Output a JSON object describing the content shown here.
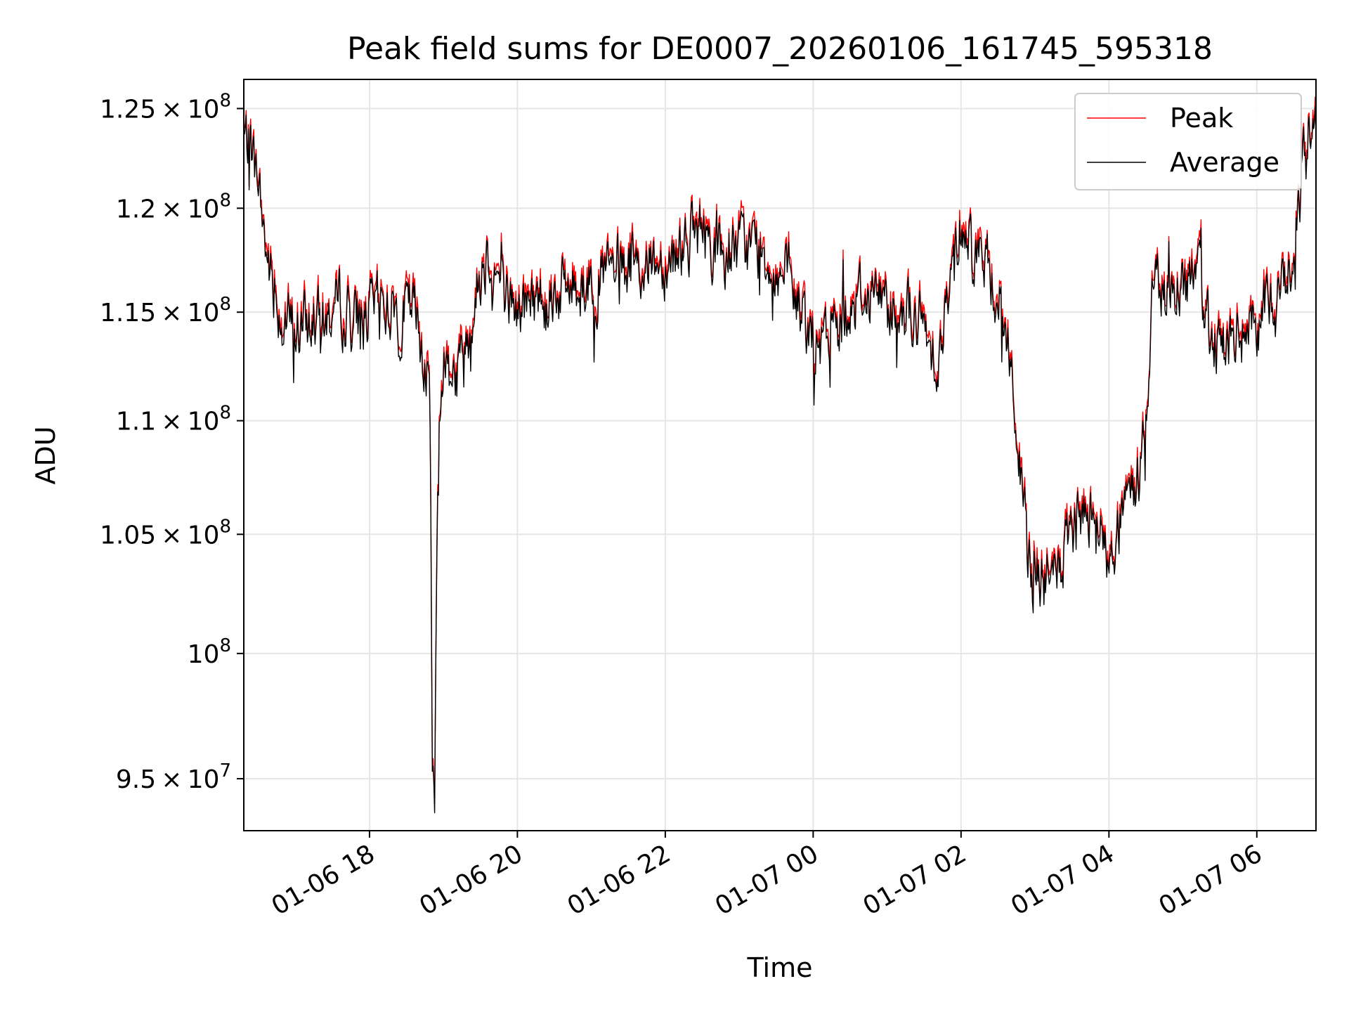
{
  "chart_data": {
    "type": "line",
    "title": "Peak field sums for DE0007_20260106_161745_595318",
    "xlabel": "Time",
    "ylabel": "ADU",
    "yscale": "log",
    "grid": true,
    "legend_position": "top-right",
    "xlim_hours": [
      16.3,
      30.8
    ],
    "ylim": [
      93000000,
      126500000
    ],
    "x_unit": "hours since 2026-01-06 00:00",
    "xticks": [
      {
        "value": 18,
        "label": "01-06 18"
      },
      {
        "value": 20,
        "label": "01-06 20"
      },
      {
        "value": 22,
        "label": "01-06 22"
      },
      {
        "value": 24,
        "label": "01-07 00"
      },
      {
        "value": 26,
        "label": "01-07 02"
      },
      {
        "value": 28,
        "label": "01-07 04"
      },
      {
        "value": 30,
        "label": "01-07 06"
      }
    ],
    "yticks": [
      {
        "value": 95000000,
        "mantissa": "9.5",
        "exp": "7"
      },
      {
        "value": 100000000,
        "mantissa": "",
        "exp": "8"
      },
      {
        "value": 105000000,
        "mantissa": "1.05",
        "exp": "8"
      },
      {
        "value": 110000000,
        "mantissa": "1.1",
        "exp": "8"
      },
      {
        "value": 115000000,
        "mantissa": "1.15",
        "exp": "8"
      },
      {
        "value": 120000000,
        "mantissa": "1.2",
        "exp": "8"
      },
      {
        "value": 125000000,
        "mantissa": "1.25",
        "exp": "8"
      }
    ],
    "series": [
      {
        "name": "Peak",
        "color": "#ff0000",
        "offset_fraction": 0.003
      },
      {
        "name": "Average",
        "color": "#000000",
        "offset_fraction": 0.0
      }
    ],
    "average_envelope": {
      "x": [
        16.3,
        16.4,
        16.5,
        16.6,
        16.7,
        16.8,
        16.9,
        17.0,
        17.2,
        17.4,
        17.6,
        17.8,
        18.0,
        18.2,
        18.4,
        18.6,
        18.75,
        18.82,
        18.85,
        18.88,
        18.92,
        19.0,
        19.2,
        19.4,
        19.5,
        19.6,
        19.8,
        20.0,
        20.2,
        20.5,
        21.0,
        21.5,
        22.0,
        22.3,
        22.5,
        22.8,
        23.0,
        23.3,
        23.6,
        24.0,
        24.1,
        24.3,
        24.5,
        24.8,
        25.0,
        25.3,
        25.5,
        25.7,
        26.0,
        26.2,
        26.5,
        26.7,
        26.8,
        26.9,
        27.0,
        27.2,
        27.4,
        27.6,
        27.8,
        27.9,
        28.0,
        28.2,
        28.4,
        28.5,
        28.6,
        28.8,
        29.0,
        29.2,
        29.4,
        29.6,
        29.8,
        30.0,
        30.2,
        30.4,
        30.5,
        30.6,
        30.7,
        30.8
      ],
      "y": [
        123500000,
        123000000,
        121000000,
        118000000,
        116000000,
        115000000,
        114500000,
        114000000,
        114500000,
        114500000,
        115500000,
        114500000,
        115000000,
        115500000,
        115000000,
        115000000,
        113000000,
        111000000,
        96000000,
        93500000,
        107000000,
        113000000,
        112000000,
        115000000,
        117000000,
        118000000,
        116000000,
        115000000,
        115500000,
        116000000,
        116500000,
        117000000,
        117500000,
        118500000,
        119000000,
        117500000,
        118000000,
        118000000,
        116500000,
        114000000,
        113000000,
        114500000,
        115500000,
        116000000,
        115500000,
        115000000,
        114000000,
        113000000,
        119500000,
        118000000,
        116000000,
        112000000,
        107500000,
        104000000,
        103000000,
        103000000,
        104000000,
        105500000,
        106500000,
        105000000,
        103500000,
        106000000,
        107500000,
        110000000,
        116500000,
        116000000,
        116500000,
        116500000,
        114000000,
        113500000,
        114000000,
        114500000,
        115500000,
        116500000,
        118000000,
        121000000,
        123500000,
        125000000
      ]
    },
    "noise_amplitude_fraction": 0.012,
    "sample_count": 1400,
    "sample_seed": 7
  }
}
